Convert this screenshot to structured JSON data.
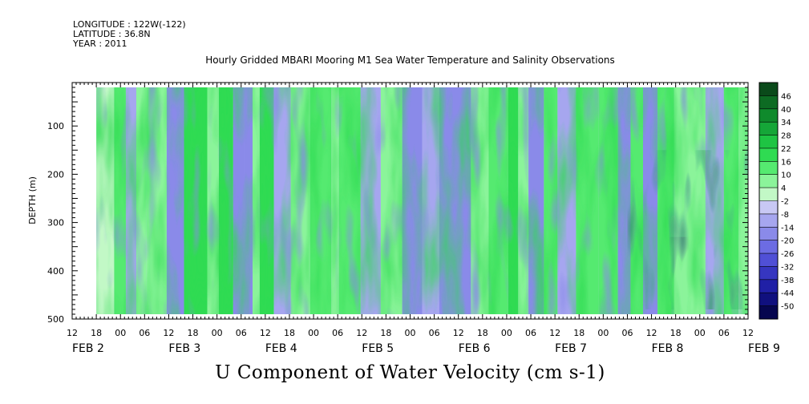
{
  "header": {
    "longitude": "LONGITUDE : 122W(-122)",
    "latitude": "LATITUDE : 36.8N",
    "year": "YEAR : 2011"
  },
  "title": "Hourly Gridded MBARI Mooring M1 Sea Water Temperature and Salinity Observations",
  "main_label": "U Component of Water Velocity (cm s-1)",
  "chart_data": {
    "type": "heatmap",
    "title": "Hourly Gridded MBARI Mooring M1 Sea Water Temperature and Salinity Observations",
    "variable": "U Component of Water Velocity (cm s-1)",
    "xlabel": "",
    "ylabel": "DEPTH (m)",
    "x_range_hours": [
      12,
      180
    ],
    "x_tick_labels": [
      "12",
      "18",
      "00",
      "06",
      "12",
      "18",
      "00",
      "06",
      "12",
      "18",
      "00",
      "06",
      "12",
      "18",
      "00",
      "06",
      "12",
      "18",
      "00",
      "06",
      "12",
      "18",
      "00",
      "06",
      "12",
      "18",
      "00",
      "06",
      "12"
    ],
    "date_labels": [
      "FEB 2",
      "FEB 3",
      "FEB 4",
      "FEB 5",
      "FEB 6",
      "FEB 7",
      "FEB 8",
      "FEB 9"
    ],
    "y_range": [
      500,
      10
    ],
    "y_ticks": [
      100,
      200,
      300,
      400,
      500
    ],
    "y_tick_labels": [
      "100",
      "200",
      "300",
      "400",
      "500"
    ],
    "data_depth_range": [
      20,
      490
    ],
    "data_time_start_hours": 18,
    "colorbar": {
      "levels": [
        46,
        40,
        34,
        28,
        22,
        16,
        10,
        4,
        -2,
        -8,
        -14,
        -20,
        -26,
        -32,
        -38,
        -44,
        -50
      ],
      "labels": [
        "46",
        "40",
        "34",
        "28",
        "22",
        "16",
        "10",
        "4",
        "-2",
        "-8",
        "-14",
        "-20",
        "-26",
        "-32",
        "-38",
        "-44",
        "-50"
      ],
      "colors_top_to_bottom": [
        "#0a4a1a",
        "#0d6b23",
        "#0f8a2c",
        "#15a638",
        "#1ec443",
        "#2fdb52",
        "#55ea70",
        "#8bf49a",
        "#c2f8c6",
        "#c8c8f4",
        "#a6a6ef",
        "#8a8ae9",
        "#6c6ce3",
        "#5050d6",
        "#3636c0",
        "#2020a6",
        "#10107e",
        "#06064f"
      ]
    }
  }
}
